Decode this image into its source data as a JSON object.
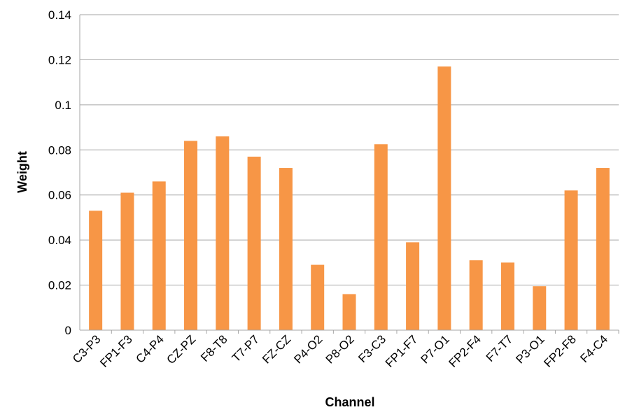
{
  "chart_data": {
    "type": "bar",
    "title": "",
    "xlabel": "Channel",
    "ylabel": "Weight",
    "ylim": [
      0,
      0.14
    ],
    "yticks": [
      0,
      0.02,
      0.04,
      0.06,
      0.08,
      0.1,
      0.12,
      0.14
    ],
    "ytick_labels": [
      "0",
      "0.02",
      "0.04",
      "0.06",
      "0.08",
      "0.1",
      "0.12",
      "0.14"
    ],
    "grid": true,
    "legend": "none",
    "bar_color": "#F79646",
    "grid_color": "#A6A6A6",
    "categories": [
      "C3-P3",
      "FP1-F3",
      "C4-P4",
      "CZ-PZ",
      "F8-T8",
      "T7-P7",
      "FZ-CZ",
      "P4-O2",
      "P8-O2",
      "F3-C3",
      "FP1-F7",
      "P7-O1",
      "FP2-F4",
      "F7-T7",
      "P3-O1",
      "FP2-F8",
      "F4-C4"
    ],
    "values": [
      0.053,
      0.061,
      0.066,
      0.084,
      0.086,
      0.077,
      0.072,
      0.029,
      0.016,
      0.0825,
      0.039,
      0.117,
      0.031,
      0.03,
      0.0195,
      0.062,
      0.072
    ]
  }
}
